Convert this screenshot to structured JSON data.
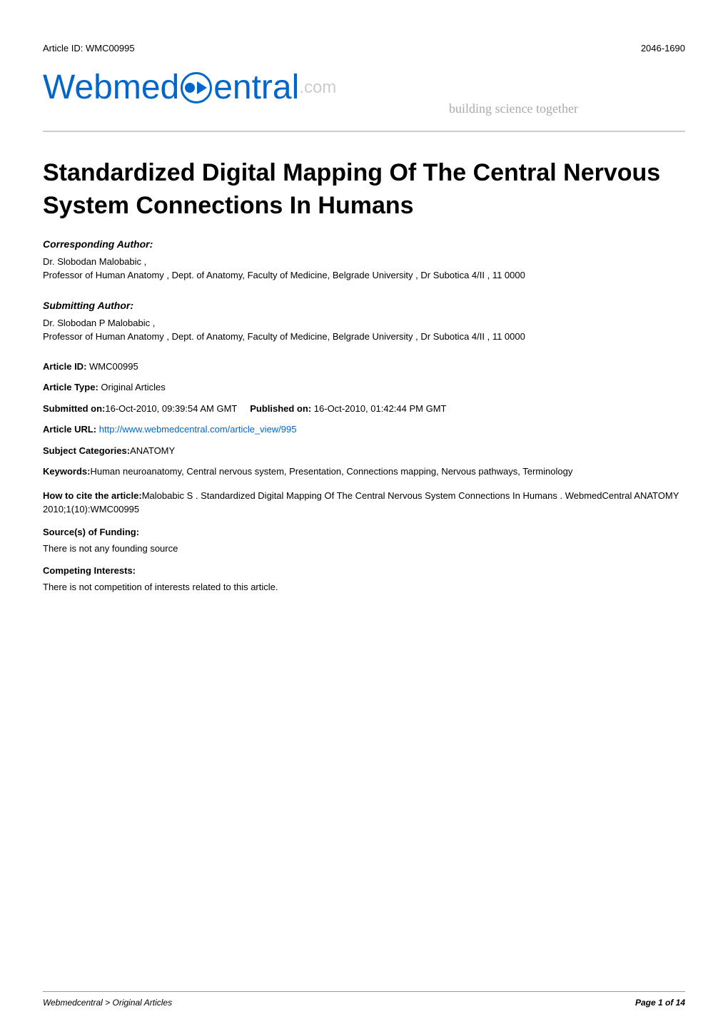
{
  "header": {
    "article_id_label": "Article ID:",
    "article_id_value": "WMC00995",
    "issn": "2046-1690"
  },
  "logo": {
    "part1": "Webmed",
    "part2": "entral",
    "suffix": ".com",
    "tagline": "building science together"
  },
  "title": "Standardized Digital Mapping Of The Central Nervous System Connections In Humans",
  "corresponding_author": {
    "label": "Corresponding Author:",
    "name": "Dr. Slobodan Malobabic ,",
    "affiliation": "Professor of Human Anatomy , Dept. of Anatomy, Faculty of Medicine, Belgrade University , Dr Subotica 4/II , 11 0000"
  },
  "submitting_author": {
    "label": "Submitting Author:",
    "name": "Dr. Slobodan P Malobabic ,",
    "affiliation": "Professor of Human Anatomy , Dept. of Anatomy, Faculty of Medicine, Belgrade University , Dr Subotica 4/II , 11 0000"
  },
  "meta": {
    "article_id_label": "Article ID:",
    "article_id_value": "WMC00995",
    "article_type_label": "Article Type:",
    "article_type_value": "Original Articles",
    "submitted_label": "Submitted on:",
    "submitted_value": "16-Oct-2010, 09:39:54 AM GMT",
    "published_label": "Published on:",
    "published_value": "16-Oct-2010, 01:42:44 PM GMT",
    "url_label": "Article URL:",
    "url_value": "http://www.webmedcentral.com/article_view/995",
    "categories_label": "Subject Categories:",
    "categories_value": "ANATOMY",
    "keywords_label": "Keywords:",
    "keywords_value": "Human neuroanatomy, Central nervous system, Presentation, Connections mapping, Nervous pathways, Terminology",
    "cite_label": "How to cite the article:",
    "cite_value": "Malobabic S . Standardized Digital Mapping Of The Central Nervous System Connections In Humans . WebmedCentral ANATOMY 2010;1(10):WMC00995",
    "funding_label": "Source(s) of Funding:",
    "funding_value": "There is not any founding source",
    "competing_label": "Competing Interests:",
    "competing_value": "There is not competition of interests related to this article."
  },
  "footer": {
    "left": "Webmedcentral > Original Articles",
    "right": "Page 1 of 14"
  },
  "colors": {
    "link": "#0066cc",
    "logo_blue": "#0066cc",
    "logo_gray": "#cccccc",
    "tagline_gray": "#aaaaaa",
    "hr_gray": "#cccccc",
    "text": "#000000",
    "background": "#ffffff"
  },
  "typography": {
    "title_fontsize": 34,
    "body_fontsize": 13,
    "logo_fontsize": 48,
    "footer_fontsize": 12
  }
}
